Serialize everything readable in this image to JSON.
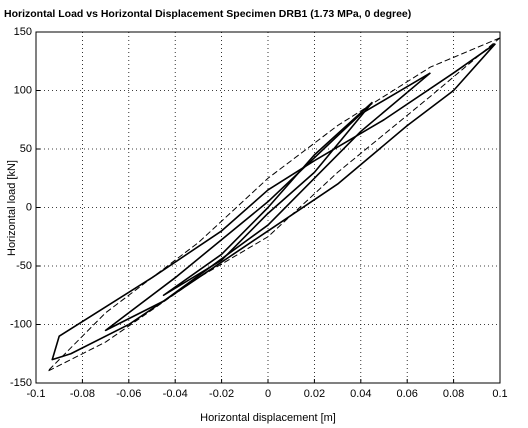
{
  "chart_data": {
    "type": "line",
    "title": "Horizontal Load vs Horizontal Displacement  Specimen DRB1 (1.73 MPa, 0 degree)",
    "xlabel": "Horizontal displacement [m]",
    "ylabel": "Horizontal load [kN]",
    "xlim": [
      -0.1,
      0.1
    ],
    "xticks": [
      -0.1,
      -0.08,
      -0.06,
      -0.04,
      -0.02,
      0,
      0.02,
      0.04,
      0.06,
      0.08,
      0.1
    ],
    "ylim": [
      -150,
      150
    ],
    "yticks": [
      -150,
      -100,
      -50,
      0,
      50,
      100,
      150
    ],
    "grid": true,
    "series": [
      {
        "color": "#000000",
        "dash": false,
        "x": [
          0.098,
          0.08,
          0.05,
          0.02,
          0,
          -0.02,
          -0.05,
          -0.07,
          -0.09,
          -0.093,
          -0.085,
          -0.06,
          -0.03,
          0,
          0.03,
          0.06,
          0.08,
          0.098
        ],
        "values": [
          140,
          115,
          75,
          40,
          15,
          -20,
          -60,
          -85,
          -110,
          -130,
          -125,
          -100,
          -60,
          -20,
          20,
          70,
          100,
          140
        ]
      },
      {
        "color": "#000000",
        "dash": false,
        "x": [
          0.07,
          0.04,
          0,
          -0.04,
          -0.07,
          -0.045,
          0,
          0.04,
          0.07
        ],
        "values": [
          115,
          80,
          5,
          -60,
          -105,
          -80,
          -15,
          65,
          115
        ]
      },
      {
        "color": "#000000",
        "dash": false,
        "x": [
          0.045,
          0.02,
          0,
          -0.02,
          -0.045,
          -0.02,
          0,
          0.02,
          0.045
        ],
        "values": [
          90,
          45,
          0,
          -40,
          -75,
          -45,
          -5,
          30,
          90
        ]
      },
      {
        "color": "#000000",
        "dash": true,
        "x": [
          0.1,
          0.07,
          0.03,
          0,
          -0.03,
          -0.07,
          -0.095,
          -0.07,
          -0.03,
          0,
          0.03,
          0.07,
          0.1
        ],
        "values": [
          145,
          120,
          70,
          25,
          -30,
          -90,
          -140,
          -115,
          -60,
          -25,
          30,
          95,
          145
        ]
      }
    ]
  }
}
